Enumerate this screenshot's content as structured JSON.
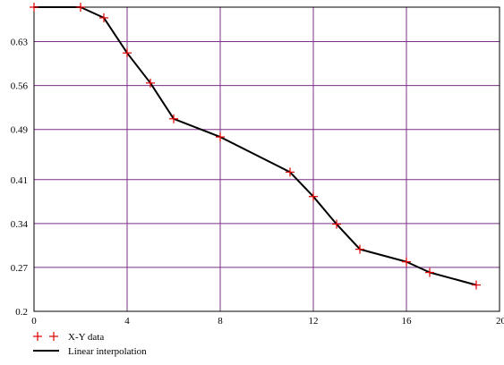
{
  "chart_data": {
    "type": "line",
    "x_ticks": [
      "0",
      "4",
      "8",
      "12",
      "16",
      "20"
    ],
    "y_ticks": [
      "0.2",
      "0.27",
      "0.34",
      "0.41",
      "0.49",
      "0.56",
      "0.63"
    ],
    "xlim": [
      0,
      20
    ],
    "ylim": [
      0.2,
      0.685
    ],
    "grid": true,
    "legend_position": "bottom-left",
    "series": [
      {
        "name": "X-Y data",
        "style": "markers",
        "marker": "plus",
        "color": "#e00000",
        "x": [
          0,
          2,
          3,
          4,
          5,
          6,
          8,
          11,
          12,
          13,
          14,
          16,
          17,
          19
        ],
        "y": [
          0.685,
          0.685,
          0.668,
          0.612,
          0.564,
          0.507,
          0.478,
          0.422,
          0.383,
          0.339,
          0.299,
          0.279,
          0.262,
          0.242
        ]
      },
      {
        "name": "Linear interpolation",
        "style": "line",
        "color": "#000000",
        "x": [
          0,
          2,
          3,
          4,
          5,
          6,
          8,
          11,
          12,
          13,
          14,
          16,
          17,
          19
        ],
        "y": [
          0.685,
          0.685,
          0.668,
          0.612,
          0.564,
          0.507,
          0.478,
          0.422,
          0.383,
          0.339,
          0.299,
          0.279,
          0.262,
          0.242
        ]
      }
    ],
    "colors": {
      "grid": "#7a2f86",
      "frame": "#000000",
      "markers": "#e00000",
      "line": "#000000"
    }
  }
}
